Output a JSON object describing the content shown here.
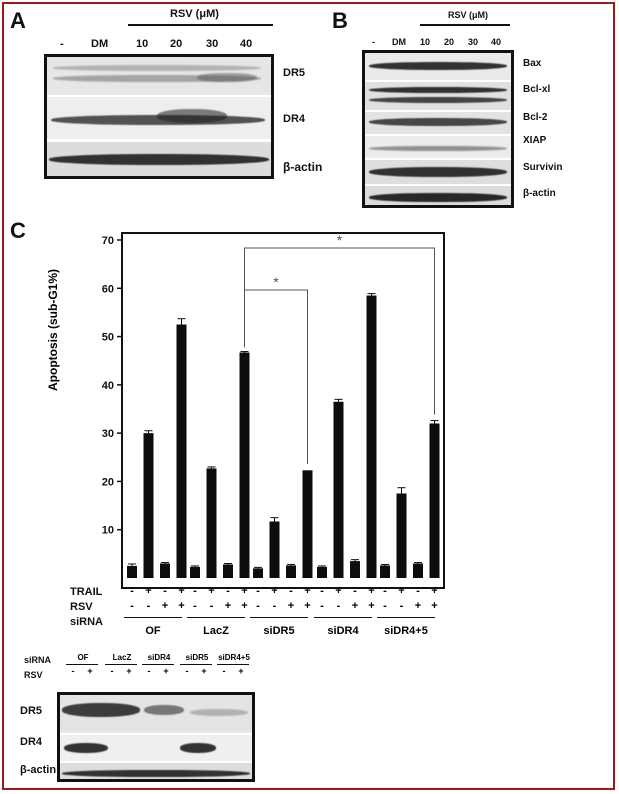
{
  "panels": {
    "a": {
      "letter": "A",
      "treatment_label": "RSV (μM)",
      "lanes": [
        "-",
        "DM",
        "10",
        "20",
        "30",
        "40"
      ],
      "rows": [
        "DR5",
        "DR4",
        "β-actin"
      ]
    },
    "b": {
      "letter": "B",
      "treatment_label": "RSV (μM)",
      "lanes": [
        "-",
        "DM",
        "10",
        "20",
        "30",
        "40"
      ],
      "rows": [
        "Bax",
        "Bcl-xl",
        "Bcl-2",
        "XIAP",
        "Survivin",
        "β-actin"
      ]
    },
    "c": {
      "letter": "C",
      "row_labels": [
        "TRAIL",
        "RSV",
        "siRNA"
      ],
      "trail_signs": [
        "-",
        "+",
        "-",
        "+"
      ],
      "rsv_signs": [
        "-",
        "-",
        "+",
        "+"
      ],
      "significance": [
        "*",
        "*"
      ]
    },
    "d": {
      "sirna_label": "siRNA",
      "rsv_label": "RSV",
      "groups": [
        "OF",
        "LacZ",
        "siDR4",
        "siDR5",
        "siDR4+5"
      ],
      "signs": [
        "-",
        "+"
      ],
      "rows": [
        "DR5",
        "DR4",
        "β-actin"
      ]
    }
  },
  "chart_data": {
    "type": "bar",
    "ylabel": "Apoptosis (sub-G1%)",
    "ylim": [
      0,
      70
    ],
    "yticks": [
      10,
      20,
      30,
      40,
      50,
      60,
      70
    ],
    "groups": [
      "OF",
      "LacZ",
      "siDR5",
      "siDR4",
      "siDR4+5"
    ],
    "conditions": [
      "TRAIL- RSV-",
      "TRAIL+ RSV-",
      "TRAIL- RSV+",
      "TRAIL+ RSV+"
    ],
    "values": [
      [
        2.5,
        30,
        3,
        52.5
      ],
      [
        2.3,
        22.7,
        2.8,
        46.7
      ],
      [
        2,
        11.7,
        2.6,
        22.3
      ],
      [
        2.3,
        36.5,
        3.5,
        58.5
      ],
      [
        2.6,
        17.5,
        3,
        32
      ]
    ],
    "errors": [
      [
        0.4,
        0.5,
        0.2,
        1.2
      ],
      [
        0.2,
        0.3,
        0.2,
        0.2
      ],
      [
        0.2,
        0.8,
        0.2,
        0.1
      ],
      [
        0.2,
        0.5,
        0.3,
        0.4
      ],
      [
        0.2,
        1.2,
        0.2,
        0.6
      ]
    ]
  }
}
